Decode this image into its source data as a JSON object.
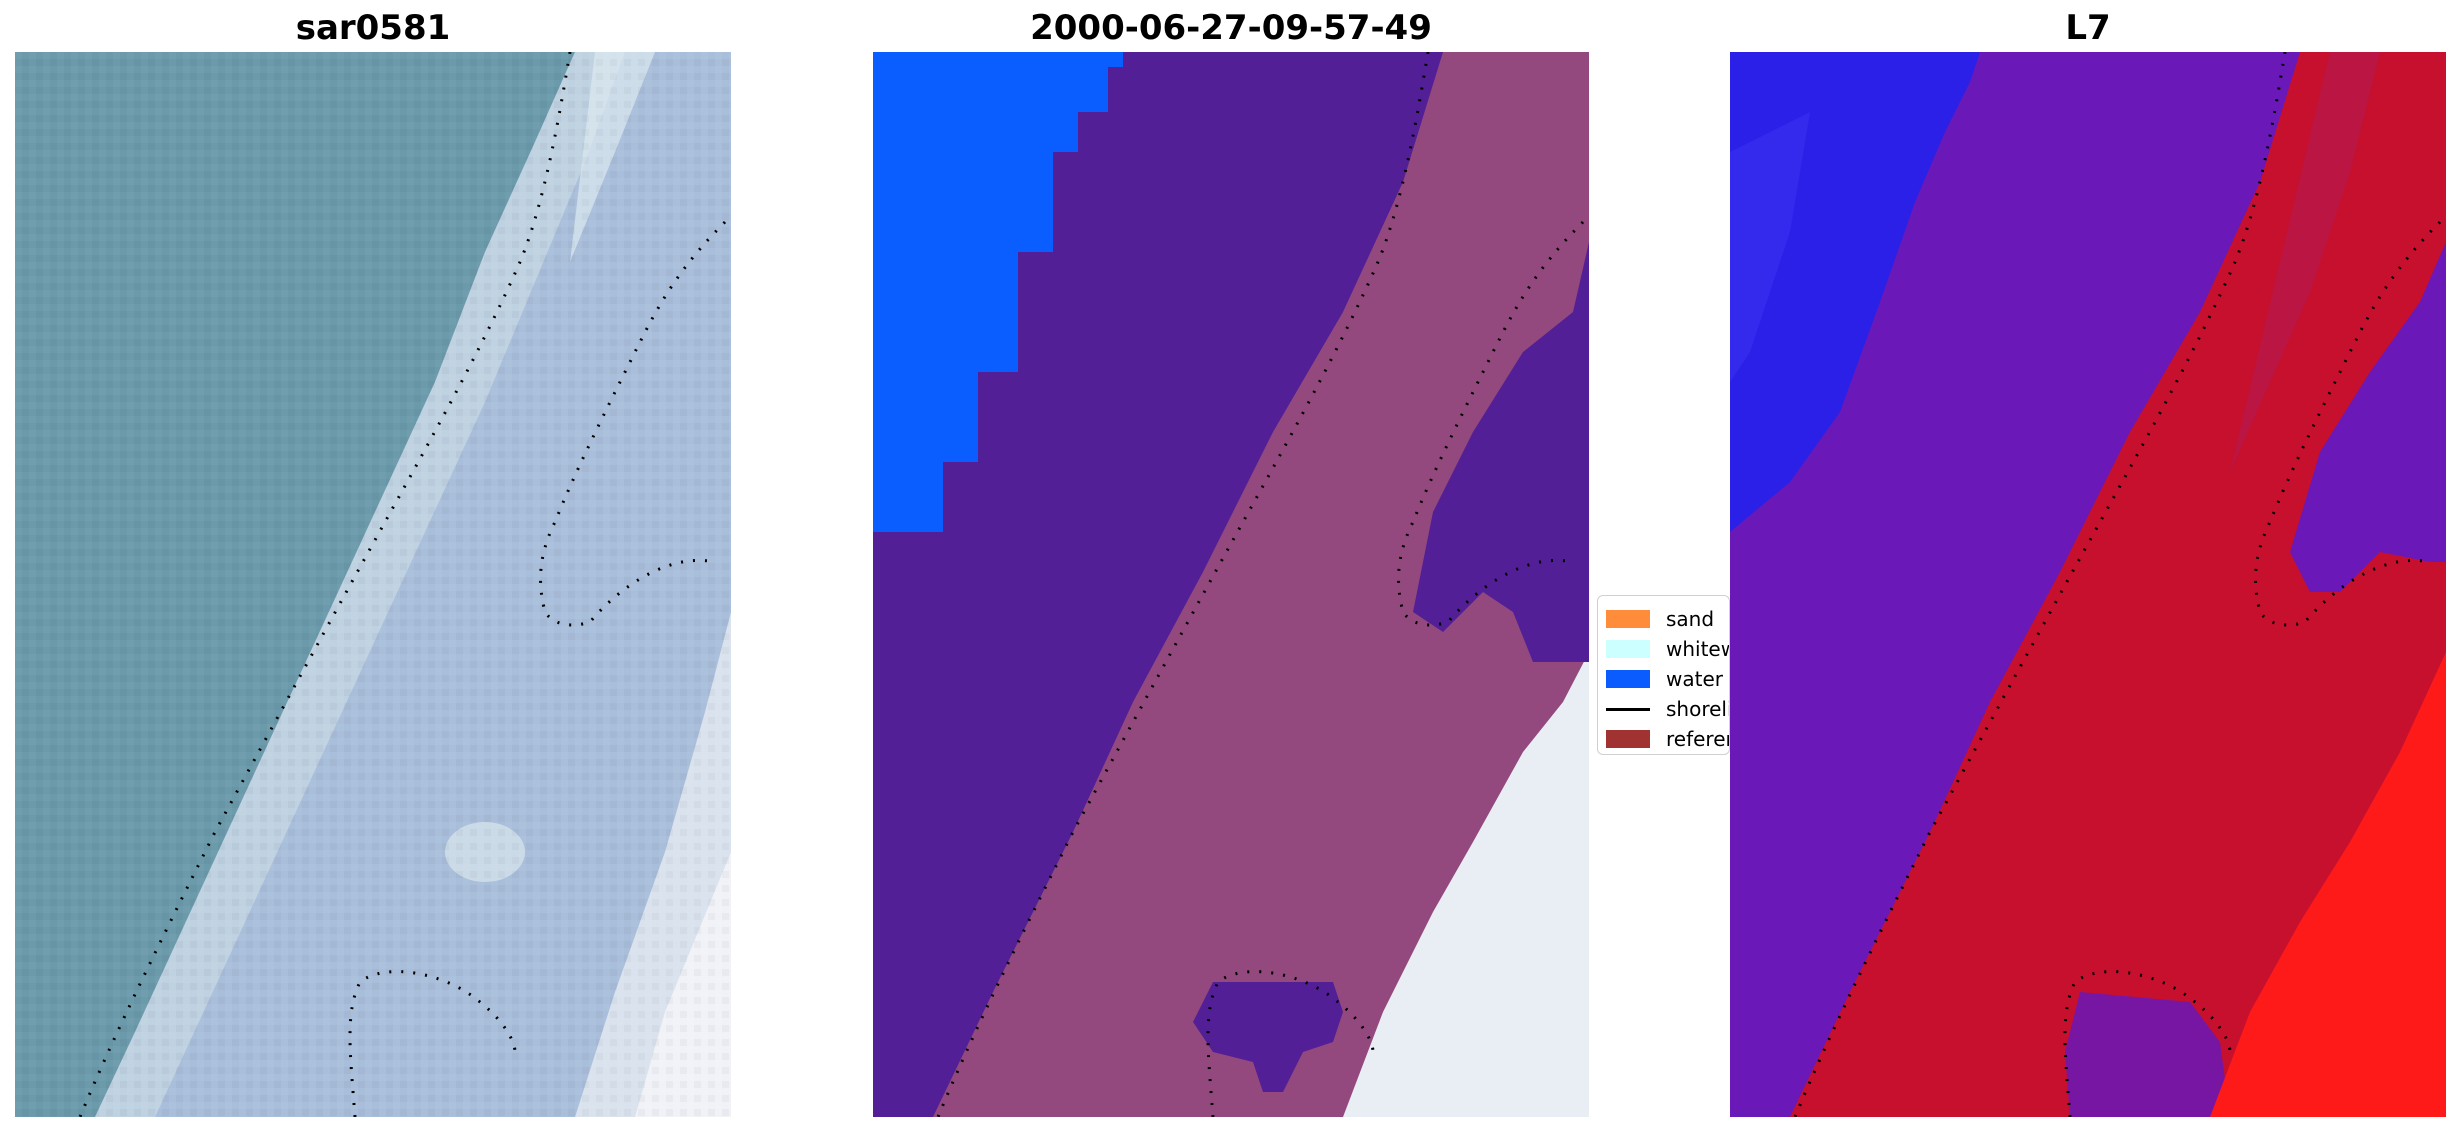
{
  "panels": [
    {
      "title": "sar0581"
    },
    {
      "title": "2000-06-27-09-57-49"
    },
    {
      "title": "L7"
    }
  ],
  "legend": {
    "items": [
      {
        "label": "sand",
        "color": "#ff8c3a",
        "kind": "patch"
      },
      {
        "label": "whitewater",
        "color": "#ccffff",
        "kind": "patch"
      },
      {
        "label": "water",
        "color": "#0b5cff",
        "kind": "patch"
      },
      {
        "label": "shoreline",
        "color": "#000000",
        "kind": "line"
      },
      {
        "label": "reference",
        "color": "#a03232",
        "kind": "patch"
      }
    ]
  },
  "colors": {
    "rgb_water": "#6b9aab",
    "rgb_land": "#a9bedb",
    "rgb_surf": "#d6e4ea",
    "class_water_blue": "#0a5dff",
    "class_purple": "#521f96",
    "class_pink": "#93497e",
    "class_white": "#e8eef4",
    "l7_blue": "#2a20e8",
    "l7_purple": "#6a18b8",
    "l7_red": "#c6102e",
    "l7_bright_red": "#ff1a1a"
  }
}
